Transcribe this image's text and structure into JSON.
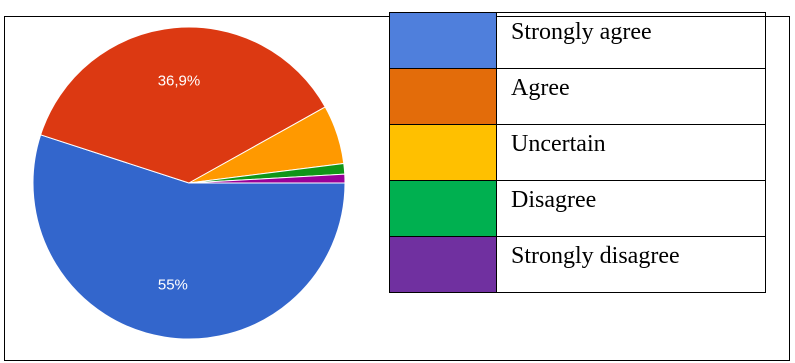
{
  "chart_data": {
    "type": "pie",
    "categories": [
      "Strongly agree",
      "Agree",
      "Uncertain",
      "Disagree",
      "Strongly disagree"
    ],
    "values": [
      55,
      36.9,
      6.1,
      1.1,
      0.9
    ],
    "value_labels": [
      "55%",
      "36,9%",
      "",
      "",
      ""
    ],
    "colors": [
      "#3366cc",
      "#dc3912",
      "#ff9900",
      "#109618",
      "#990099"
    ],
    "legend_colors": [
      "#4f7fdc",
      "#e36c0a",
      "#ffc000",
      "#00b050",
      "#7030a0"
    ],
    "legend_placement": "right"
  }
}
